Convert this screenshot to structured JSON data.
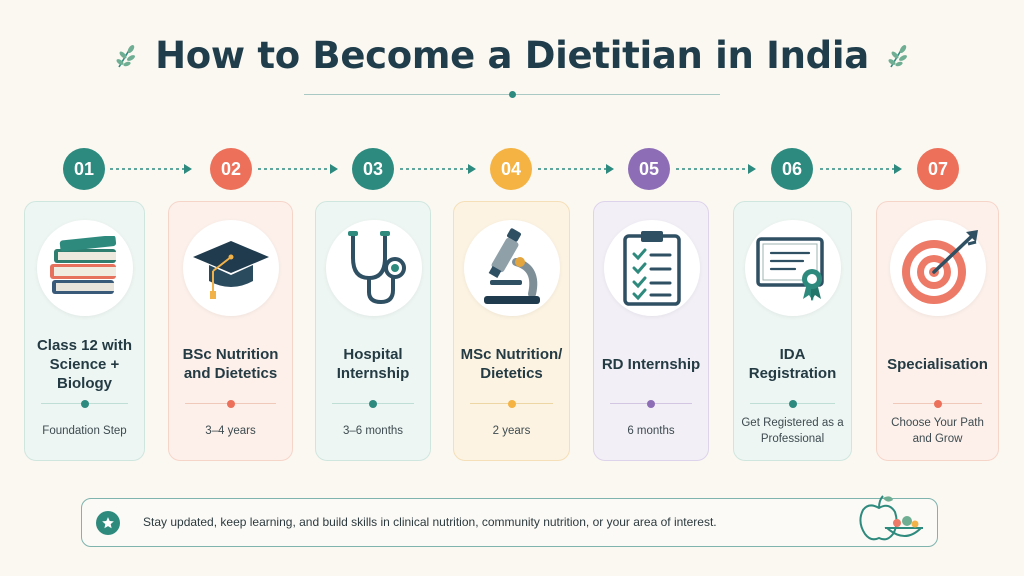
{
  "title": "How to Become a Dietitian in India",
  "steps": [
    {
      "num": "01",
      "title": "Class 12 with Science + Biology",
      "sub": "Foundation Step",
      "icon": "books-icon",
      "accent": "#2d8a7f",
      "bg": "#eef6f3",
      "border": "#cfe6df",
      "rule": "#bfded6"
    },
    {
      "num": "02",
      "title": "BSc Nutrition and Dietetics",
      "sub": "3–4 years",
      "icon": "graduation-cap-icon",
      "accent": "#ec705a",
      "bg": "#fdf0ea",
      "border": "#f6d5c9",
      "rule": "#f1c9bb"
    },
    {
      "num": "03",
      "title": "Hospital Internship",
      "sub": "3–6 months",
      "icon": "stethoscope-icon",
      "accent": "#2d8a7f",
      "bg": "#eef6f3",
      "border": "#cfe6df",
      "rule": "#bfded6"
    },
    {
      "num": "04",
      "title": "MSc Nutrition/ Dietetics",
      "sub": "2 years",
      "icon": "microscope-icon",
      "accent": "#f4b342",
      "bg": "#fdf3e2",
      "border": "#f4dfb8",
      "rule": "#eed6a4"
    },
    {
      "num": "05",
      "title": "RD Internship",
      "sub": "6 months",
      "icon": "clipboard-icon",
      "accent": "#8d6eb6",
      "bg": "#f3eff7",
      "border": "#ddd3ea",
      "rule": "#d2c6e2"
    },
    {
      "num": "06",
      "title": "IDA Registration",
      "sub": "Get Registered as a Professional",
      "icon": "certificate-icon",
      "accent": "#2d8a7f",
      "bg": "#eef6f3",
      "border": "#cfe6df",
      "rule": "#bfded6"
    },
    {
      "num": "07",
      "title": "Specialisation",
      "sub": "Choose Your Path and Grow",
      "icon": "target-icon",
      "accent": "#ec705a",
      "bg": "#fdf0ea",
      "border": "#f6d5c9",
      "rule": "#f1c9bb"
    }
  ],
  "footer": {
    "note": "Stay updated, keep learning, and build skills in clinical nutrition, community nutrition, or your area of interest.",
    "icon": "star-icon",
    "illustration": "apple-bowl-icon"
  }
}
